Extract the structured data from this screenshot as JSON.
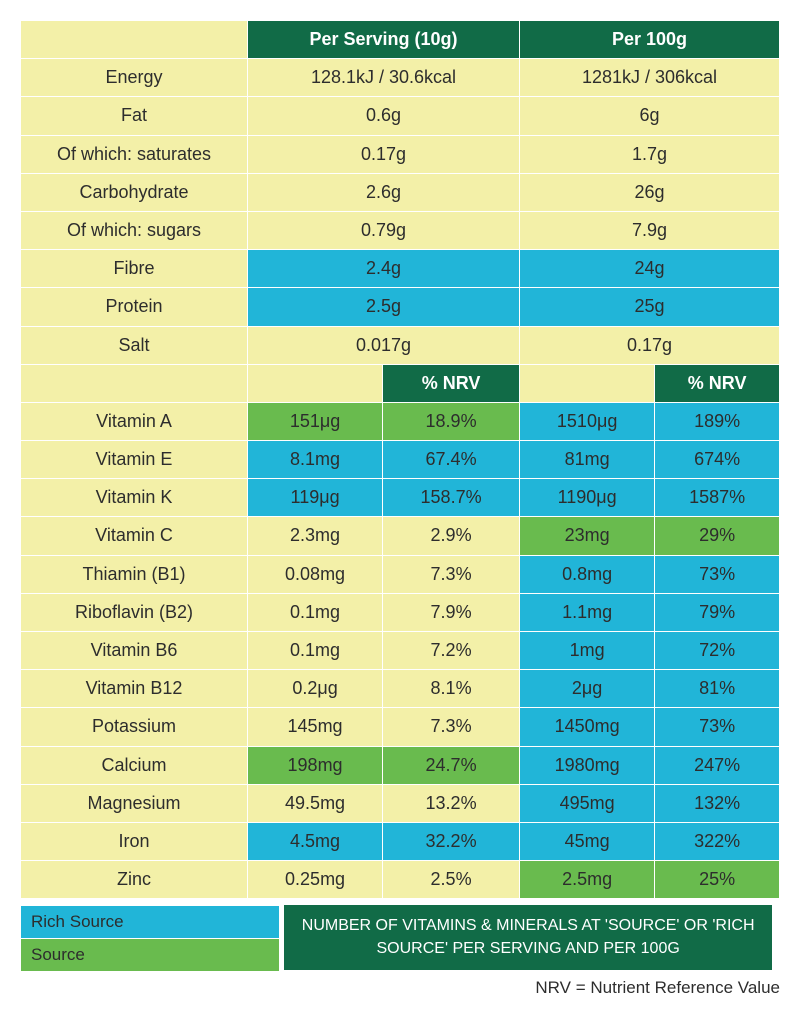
{
  "colors": {
    "header_bg": "#116b47",
    "header_text": "#ffffff",
    "yellow": "#f3f0a8",
    "cyan": "#21b5d8",
    "green": "#69bb4e",
    "body_text": "#2d2d2d",
    "border": "#ffffff"
  },
  "typography": {
    "font_family": "Helvetica, Arial, sans-serif",
    "body_fontsize": 18,
    "header_fontsize": 20,
    "footnote_fontsize": 16
  },
  "headers": {
    "per_serving": "Per Serving (10g)",
    "per_100g": "Per 100g",
    "pct_nrv": "% NRV"
  },
  "basic_rows": [
    {
      "name": "Energy",
      "serv": "128.1kJ / 30.6kcal",
      "per100": "1281kJ / 306kcal",
      "serv_bg": "yellow",
      "per100_bg": "yellow"
    },
    {
      "name": "Fat",
      "serv": "0.6g",
      "per100": "6g",
      "serv_bg": "yellow",
      "per100_bg": "yellow"
    },
    {
      "name": "Of which: saturates",
      "serv": "0.17g",
      "per100": "1.7g",
      "serv_bg": "yellow",
      "per100_bg": "yellow"
    },
    {
      "name": "Carbohydrate",
      "serv": "2.6g",
      "per100": "26g",
      "serv_bg": "yellow",
      "per100_bg": "yellow"
    },
    {
      "name": "Of which: sugars",
      "serv": "0.79g",
      "per100": "7.9g",
      "serv_bg": "yellow",
      "per100_bg": "yellow"
    },
    {
      "name": "Fibre",
      "serv": "2.4g",
      "per100": "24g",
      "serv_bg": "cyan",
      "per100_bg": "cyan"
    },
    {
      "name": "Protein",
      "serv": "2.5g",
      "per100": "25g",
      "serv_bg": "cyan",
      "per100_bg": "cyan"
    },
    {
      "name": "Salt",
      "serv": "0.017g",
      "per100": "0.17g",
      "serv_bg": "yellow",
      "per100_bg": "yellow"
    }
  ],
  "nrv_rows": [
    {
      "name": "Vitamin A",
      "serv_val": "151μg",
      "serv_pct": "18.9%",
      "serv_bg": "green",
      "p100_val": "1510μg",
      "p100_pct": "189%",
      "p100_bg": "cyan"
    },
    {
      "name": "Vitamin E",
      "serv_val": "8.1mg",
      "serv_pct": "67.4%",
      "serv_bg": "cyan",
      "p100_val": "81mg",
      "p100_pct": "674%",
      "p100_bg": "cyan"
    },
    {
      "name": "Vitamin K",
      "serv_val": "119μg",
      "serv_pct": "158.7%",
      "serv_bg": "cyan",
      "p100_val": "1190μg",
      "p100_pct": "1587%",
      "p100_bg": "cyan"
    },
    {
      "name": "Vitamin C",
      "serv_val": "2.3mg",
      "serv_pct": "2.9%",
      "serv_bg": "yellow",
      "p100_val": "23mg",
      "p100_pct": "29%",
      "p100_bg": "green"
    },
    {
      "name": "Thiamin (B1)",
      "serv_val": "0.08mg",
      "serv_pct": "7.3%",
      "serv_bg": "yellow",
      "p100_val": "0.8mg",
      "p100_pct": "73%",
      "p100_bg": "cyan"
    },
    {
      "name": "Riboflavin (B2)",
      "serv_val": "0.1mg",
      "serv_pct": "7.9%",
      "serv_bg": "yellow",
      "p100_val": "1.1mg",
      "p100_pct": "79%",
      "p100_bg": "cyan"
    },
    {
      "name": "Vitamin B6",
      "serv_val": "0.1mg",
      "serv_pct": "7.2%",
      "serv_bg": "yellow",
      "p100_val": "1mg",
      "p100_pct": "72%",
      "p100_bg": "cyan"
    },
    {
      "name": "Vitamin B12",
      "serv_val": "0.2μg",
      "serv_pct": "8.1%",
      "serv_bg": "yellow",
      "p100_val": "2μg",
      "p100_pct": "81%",
      "p100_bg": "cyan"
    },
    {
      "name": "Potassium",
      "serv_val": "145mg",
      "serv_pct": "7.3%",
      "serv_bg": "yellow",
      "p100_val": "1450mg",
      "p100_pct": "73%",
      "p100_bg": "cyan"
    },
    {
      "name": "Calcium",
      "serv_val": "198mg",
      "serv_pct": "24.7%",
      "serv_bg": "green",
      "p100_val": "1980mg",
      "p100_pct": "247%",
      "p100_bg": "cyan"
    },
    {
      "name": "Magnesium",
      "serv_val": "49.5mg",
      "serv_pct": "13.2%",
      "serv_bg": "yellow",
      "p100_val": "495mg",
      "p100_pct": "132%",
      "p100_bg": "cyan"
    },
    {
      "name": "Iron",
      "serv_val": "4.5mg",
      "serv_pct": "32.2%",
      "serv_bg": "cyan",
      "p100_val": "45mg",
      "p100_pct": "322%",
      "p100_bg": "cyan"
    },
    {
      "name": "Zinc",
      "serv_val": "0.25mg",
      "serv_pct": "2.5%",
      "serv_bg": "yellow",
      "p100_val": "2.5mg",
      "p100_pct": "25%",
      "p100_bg": "green"
    }
  ],
  "legend": {
    "rich": "Rich Source",
    "source": "Source"
  },
  "footnote": "NUMBER OF VITAMINS & MINERALS AT 'SOURCE' OR 'RICH SOURCE' PER SERVING AND PER 100G",
  "nrv_note": "NRV = Nutrient Reference Value"
}
